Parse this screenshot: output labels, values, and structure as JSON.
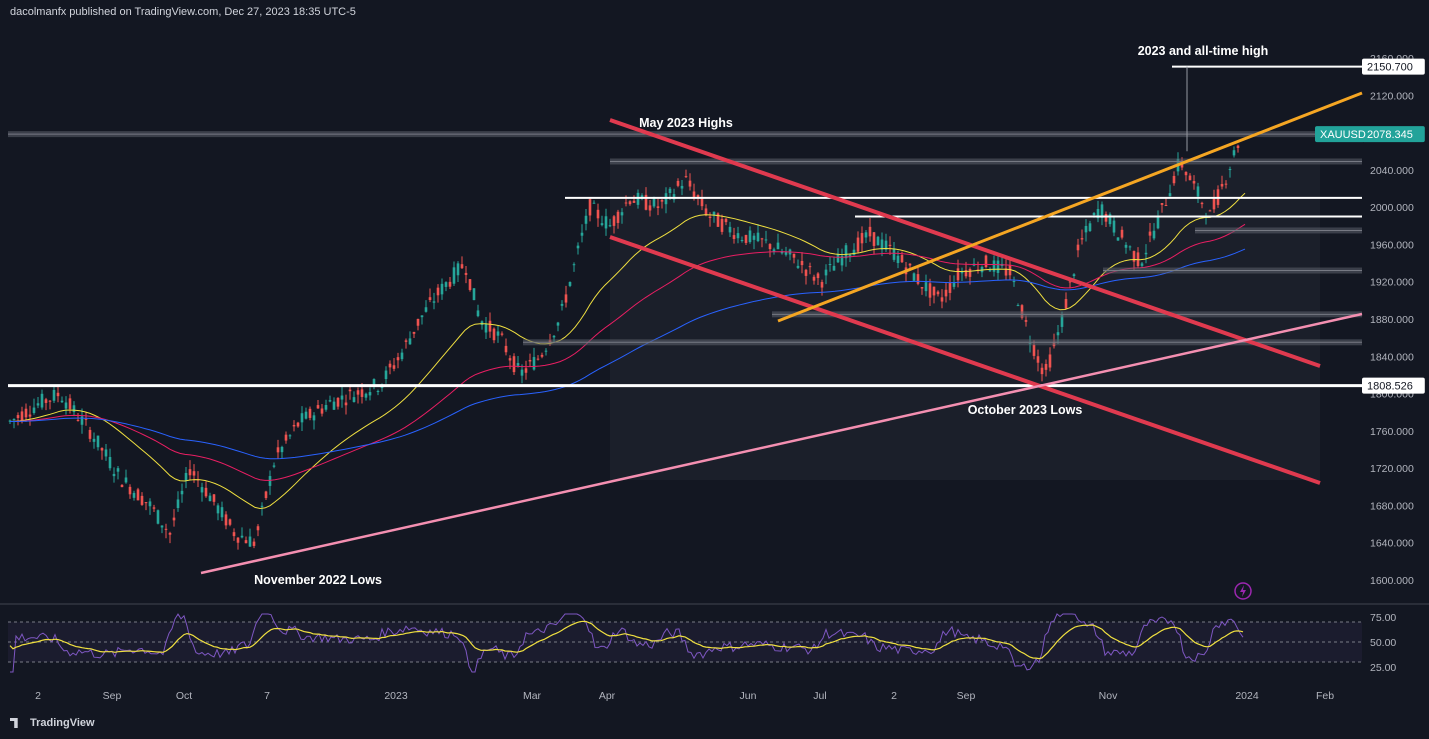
{
  "header": {
    "publisher": "dacolmanfx published on TradingView.com, Dec 27, 2023 18:35 UTC-5"
  },
  "footer": {
    "brand": "TradingView"
  },
  "symbol": {
    "name": "XAUUSD",
    "last_price": "2078.345",
    "ath_label": "2150.700",
    "level_label": "1808.526"
  },
  "colors": {
    "bg": "#131722",
    "up": "#26a69a",
    "down": "#ef5350",
    "ema50": "#f0e040",
    "ema100": "#e91e63",
    "ema200": "#2962ff",
    "channel": "#e03a4f",
    "trend_orange": "#f5a623",
    "trend_pink": "#f48fb1",
    "rsi": "#7e57c2",
    "rsi_signal": "#f0e040"
  },
  "chart_data": {
    "type": "line",
    "title": "",
    "price_axis_ticks": [
      2160,
      2120,
      2080,
      2040,
      2000,
      1960,
      1920,
      1880,
      1840,
      1800,
      1760,
      1720,
      1680,
      1640,
      1600
    ],
    "price_axis_labels": [
      "2160.000",
      "2120.000",
      "2080.000",
      "2040.000",
      "2000.000",
      "1960.000",
      "1920.000",
      "1880.000",
      "1840.000",
      "1800.000",
      "1760.000",
      "1720.000",
      "1680.000",
      "1640.000",
      "1600.000"
    ],
    "ylim": [
      1585,
      2175
    ],
    "time_axis_labels": [
      "2",
      "Sep",
      "Oct",
      "7",
      "2023",
      "Mar",
      "Apr",
      "Jun",
      "Jul",
      "2",
      "Sep",
      "Nov",
      "2024",
      "Feb"
    ],
    "series": [
      {
        "name": "XAUUSD",
        "x": [
          "2022-08",
          "2022-09",
          "2022-10",
          "2022-11",
          "2022-12",
          "2023-01",
          "2023-02",
          "2023-03",
          "2023-04",
          "2023-05",
          "2023-06",
          "2023-07",
          "2023-08",
          "2023-09",
          "2023-10",
          "2023-11",
          "2023-12"
        ],
        "values": [
          1775,
          1690,
          1650,
          1660,
          1780,
          1915,
          1830,
          1960,
          1990,
          1960,
          1920,
          1960,
          1940,
          1870,
          1985,
          2040,
          2078
        ]
      }
    ],
    "rsi_ticks": [
      "75.00",
      "50.00",
      "25.00"
    ],
    "horizontal_levels": [
      2150.7,
      2078.345,
      2049,
      2010,
      1990,
      1975,
      1932,
      1885,
      1855,
      1808.526
    ],
    "annotations": [
      {
        "text": "2023 and all-time high"
      },
      {
        "text": "May 2023 Highs"
      },
      {
        "text": "October 2023 Lows"
      },
      {
        "text": "November 2022 Lows"
      }
    ]
  }
}
